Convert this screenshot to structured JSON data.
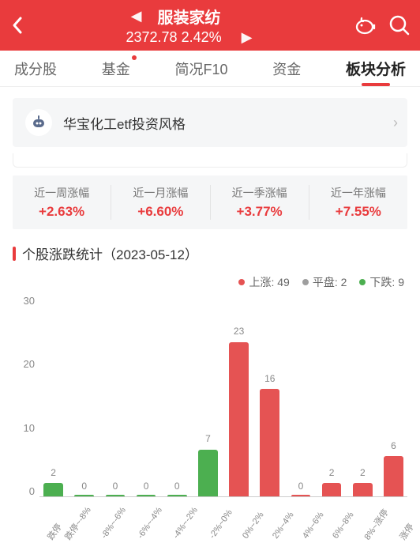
{
  "header": {
    "bg": "#e93b3d",
    "title": "服装家纺",
    "price": "2372.78",
    "change": "2.42%"
  },
  "tabs": [
    {
      "label": "成分股",
      "active": false,
      "dot": false
    },
    {
      "label": "基金",
      "active": false,
      "dot": true
    },
    {
      "label": "简况F10",
      "active": false,
      "dot": false
    },
    {
      "label": "资金",
      "active": false,
      "dot": false
    },
    {
      "label": "板块分析",
      "active": true,
      "dot": false
    }
  ],
  "card": {
    "text": "华宝化工etf投资风格"
  },
  "metrics": [
    {
      "label": "近一周涨幅",
      "value": "+2.63%"
    },
    {
      "label": "近一月涨幅",
      "value": "+6.60%"
    },
    {
      "label": "近一季涨幅",
      "value": "+3.77%"
    },
    {
      "label": "近一年涨幅",
      "value": "+7.55%"
    }
  ],
  "section": {
    "title": "个股涨跌统计（2023-05-12）"
  },
  "legend": [
    {
      "label": "上涨",
      "count": 49,
      "color": "#e55353"
    },
    {
      "label": "平盘",
      "count": 2,
      "color": "#9e9e9e"
    },
    {
      "label": "下跌",
      "count": 9,
      "color": "#4caf50"
    }
  ],
  "chart": {
    "ymax": 30,
    "yticks": [
      30,
      20,
      10,
      0
    ],
    "up_color": "#e55353",
    "flat_color": "#9e9e9e",
    "down_color": "#4caf50",
    "categories": [
      "跌停",
      "跌停~-8%",
      "-8%~-6%",
      "-6%~-4%",
      "-4%~-2%",
      "-2%~0%",
      "0%~2%",
      "2%~4%",
      "4%~6%",
      "6%~8%",
      "8%~涨停",
      "涨停"
    ],
    "values": [
      2,
      0,
      0,
      0,
      0,
      7,
      23,
      16,
      0,
      2,
      2,
      6
    ],
    "series": [
      "down",
      "down",
      "down",
      "down",
      "down",
      "down",
      "up",
      "up",
      "up",
      "up",
      "up",
      "up"
    ]
  }
}
